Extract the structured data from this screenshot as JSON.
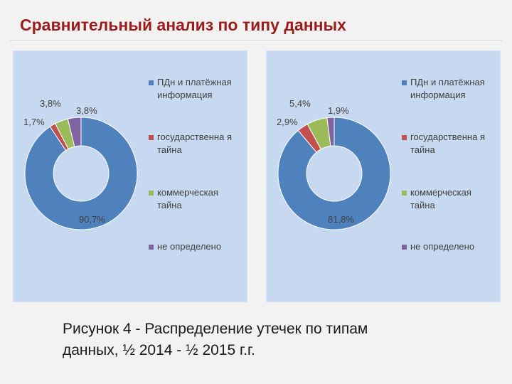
{
  "slide": {
    "title": "Сравнительный анализ по типу данных",
    "caption_line1": "Рисунок 4 -  Распределение утечек по типам",
    "caption_line2": "данных, ½ 2014 - ½ 2015 г.г."
  },
  "legend": [
    {
      "label": "ПДн и платёжная информация",
      "color": "#4f81bd"
    },
    {
      "label": "государственна я тайна",
      "color": "#c0504d"
    },
    {
      "label": "коммерческая тайна",
      "color": "#9bbb59"
    },
    {
      "label": "не определено",
      "color": "#8064a2"
    }
  ],
  "chart_data": [
    {
      "type": "pie",
      "variant": "donut",
      "period": "½ 2014",
      "categories": [
        "ПДн и платёжная информация",
        "государственная тайна",
        "коммерческая тайна",
        "не определено"
      ],
      "values": [
        90.7,
        1.7,
        3.8,
        3.8
      ],
      "data_labels": [
        "90,7%",
        "1,7%",
        "3,8%",
        "3,8%"
      ],
      "colors": [
        "#4f81bd",
        "#c0504d",
        "#9bbb59",
        "#8064a2"
      ],
      "legend_position": "right"
    },
    {
      "type": "pie",
      "variant": "donut",
      "period": "½ 2015",
      "categories": [
        "ПДн и платёжная информация",
        "государственная тайна",
        "коммерческая тайна",
        "не определено"
      ],
      "values": [
        81.8,
        2.9,
        5.4,
        1.9
      ],
      "data_labels": [
        "81,8%",
        "2,9%",
        "5,4%",
        "1,9%"
      ],
      "colors": [
        "#4f81bd",
        "#c0504d",
        "#9bbb59",
        "#8064a2"
      ],
      "legend_position": "right"
    }
  ]
}
